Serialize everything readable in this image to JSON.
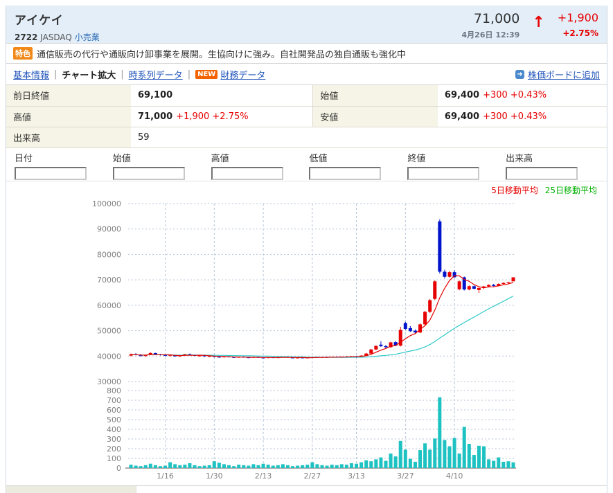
{
  "header": {
    "name": "アイケイ",
    "code": "2722",
    "market": "JASDAQ",
    "industry": "小売業",
    "price": "71,000",
    "datetime": "4月26日 12:39",
    "change": "+1,900",
    "change_pct": "+2.75%",
    "arrow": "↑"
  },
  "feature": {
    "badge": "特色",
    "text": "通信販売の代行や通販向け卸事業を展開。生協向けに強み。自社開発品の独自通販も強化中"
  },
  "tabs": {
    "items": [
      {
        "label": "基本情報"
      },
      {
        "label": "チャート拡大"
      },
      {
        "label": "時系列データ"
      },
      {
        "label": "財務データ",
        "badge": "NEW"
      }
    ],
    "separator": "|",
    "board_link": "株価ボードに追加",
    "board_icon": "➜"
  },
  "summary": {
    "cells": [
      {
        "label": "前日終値",
        "value": "69,100",
        "change": ""
      },
      {
        "label": "始値",
        "value": "69,400",
        "change": "+300 +0.43%"
      },
      {
        "label": "高値",
        "value": "71,000",
        "change": "+1,900 +2.75%"
      },
      {
        "label": "安値",
        "value": "69,400",
        "change": "+300 +0.43%"
      },
      {
        "label": "出来高",
        "value": "59",
        "change": ""
      }
    ]
  },
  "entry": {
    "fields": [
      "日付",
      "始値",
      "高値",
      "低値",
      "終値",
      "出来高"
    ]
  },
  "chart_data": {
    "type": "candlestick",
    "title": "",
    "legend": [
      {
        "label": "5日移動平均",
        "color": "#e60000"
      },
      {
        "label": "25日移動平均",
        "color": "#00b000"
      }
    ],
    "price_axis": {
      "min": 30000,
      "max": 100000,
      "ticks": [
        100000,
        90000,
        80000,
        70000,
        60000,
        50000,
        40000,
        30000
      ]
    },
    "volume_axis": {
      "min": 0,
      "max": 800,
      "ticks": [
        800,
        700,
        600,
        500,
        400,
        300,
        200,
        100,
        0
      ]
    },
    "x_ticks": [
      {
        "label": "1/16",
        "index": 7
      },
      {
        "label": "1/30",
        "index": 17
      },
      {
        "label": "2/13",
        "index": 27
      },
      {
        "label": "2/27",
        "index": 37
      },
      {
        "label": "3/13",
        "index": 46
      },
      {
        "label": "3/27",
        "index": 56
      },
      {
        "label": "4/10",
        "index": 66
      }
    ],
    "up_color": "#e60000",
    "down_color": "#0014cc",
    "ma5_color": "#e60000",
    "ma25_color": "#2ec8c8",
    "volume_color": "#1fc2c2",
    "grid_color": "#b4c2d6",
    "axis_text_color": "#808080",
    "candles": [
      [
        40200,
        41000,
        39900,
        40700
      ],
      [
        40700,
        41200,
        40300,
        40500
      ],
      [
        40500,
        40800,
        39900,
        40000
      ],
      [
        40000,
        40600,
        39800,
        40500
      ],
      [
        40500,
        41500,
        40400,
        41200
      ],
      [
        41200,
        41300,
        40500,
        40700
      ],
      [
        40700,
        40900,
        40200,
        40400
      ],
      [
        40400,
        40600,
        39900,
        40100
      ],
      [
        40100,
        40500,
        39900,
        40300
      ],
      [
        40300,
        40400,
        39700,
        39900
      ],
      [
        39900,
        40300,
        39700,
        40200
      ],
      [
        40200,
        40900,
        40100,
        40800
      ],
      [
        40800,
        41000,
        40300,
        40500
      ],
      [
        40500,
        40600,
        39900,
        40100
      ],
      [
        40100,
        40400,
        39800,
        40200
      ],
      [
        40200,
        40300,
        39700,
        39900
      ],
      [
        39900,
        40200,
        39600,
        40000
      ],
      [
        40000,
        40100,
        39500,
        39700
      ],
      [
        39700,
        40000,
        39400,
        39600
      ],
      [
        39600,
        39900,
        39400,
        39800
      ],
      [
        39800,
        40000,
        39500,
        39600
      ],
      [
        39600,
        39800,
        39300,
        39500
      ],
      [
        39500,
        39800,
        39300,
        39700
      ],
      [
        39700,
        39900,
        39400,
        39500
      ],
      [
        39500,
        39700,
        39200,
        39400
      ],
      [
        39400,
        39700,
        39300,
        39600
      ],
      [
        39600,
        39800,
        39300,
        39400
      ],
      [
        39400,
        39600,
        39100,
        39300
      ],
      [
        39300,
        39600,
        39200,
        39500
      ],
      [
        39500,
        39700,
        39300,
        39400
      ],
      [
        39400,
        39600,
        39200,
        39500
      ],
      [
        39500,
        39800,
        39400,
        39700
      ],
      [
        39700,
        39800,
        39300,
        39400
      ],
      [
        39400,
        39600,
        39200,
        39300
      ],
      [
        39300,
        39500,
        39100,
        39400
      ],
      [
        39400,
        39600,
        39200,
        39300
      ],
      [
        39300,
        39500,
        39100,
        39400
      ],
      [
        39400,
        39700,
        39300,
        39600
      ],
      [
        39600,
        39800,
        39400,
        39500
      ],
      [
        39500,
        39700,
        39300,
        39600
      ],
      [
        39600,
        39800,
        39400,
        39500
      ],
      [
        39500,
        39800,
        39400,
        39700
      ],
      [
        39700,
        39900,
        39500,
        39600
      ],
      [
        39600,
        39900,
        39500,
        39800
      ],
      [
        39800,
        40000,
        39600,
        39700
      ],
      [
        39700,
        40000,
        39600,
        39900
      ],
      [
        39900,
        40100,
        39700,
        39800
      ],
      [
        39800,
        40300,
        39700,
        40200
      ],
      [
        40200,
        41200,
        40100,
        41000
      ],
      [
        41000,
        42800,
        40900,
        42600
      ],
      [
        42600,
        44200,
        42400,
        44000
      ],
      [
        44500,
        45800,
        43600,
        43900
      ],
      [
        43900,
        44400,
        43100,
        43500
      ],
      [
        43500,
        45600,
        43300,
        45400
      ],
      [
        45500,
        46000,
        43900,
        44100
      ],
      [
        44100,
        51500,
        43800,
        50300
      ],
      [
        53000,
        53500,
        50300,
        50700
      ],
      [
        51000,
        51800,
        49500,
        49800
      ],
      [
        50000,
        50500,
        48800,
        49300
      ],
      [
        49300,
        52800,
        49000,
        52500
      ],
      [
        52500,
        57800,
        52200,
        57400
      ],
      [
        57400,
        62500,
        57000,
        62000
      ],
      [
        62500,
        69800,
        62000,
        69400
      ],
      [
        93000,
        93800,
        72500,
        73200
      ],
      [
        73200,
        74000,
        70500,
        71200
      ],
      [
        71200,
        73500,
        70800,
        73000
      ],
      [
        73000,
        73800,
        70800,
        71000
      ],
      [
        66300,
        69700,
        65900,
        69400
      ],
      [
        71000,
        71300,
        65800,
        66200
      ],
      [
        66200,
        67800,
        65900,
        67500
      ],
      [
        67500,
        67800,
        66200,
        66500
      ],
      [
        66000,
        67000,
        64800,
        66800
      ],
      [
        66800,
        67600,
        66300,
        67400
      ],
      [
        67400,
        68200,
        67000,
        68000
      ],
      [
        68000,
        68400,
        67300,
        67600
      ],
      [
        67600,
        68600,
        67400,
        68400
      ],
      [
        68400,
        69000,
        68000,
        68800
      ],
      [
        68800,
        69300,
        68300,
        69100
      ],
      [
        69400,
        71000,
        69400,
        71000
      ]
    ],
    "volumes": [
      35,
      25,
      20,
      30,
      45,
      30,
      20,
      25,
      60,
      40,
      30,
      35,
      50,
      30,
      20,
      25,
      30,
      70,
      55,
      40,
      30,
      20,
      35,
      30,
      25,
      40,
      30,
      45,
      35,
      25,
      30,
      40,
      30,
      20,
      25,
      30,
      35,
      60,
      40,
      30,
      25,
      35,
      30,
      40,
      35,
      50,
      45,
      60,
      80,
      70,
      90,
      110,
      75,
      150,
      120,
      280,
      190,
      95,
      65,
      185,
      255,
      190,
      305,
      730,
      290,
      225,
      310,
      150,
      425,
      250,
      135,
      230,
      225,
      90,
      75,
      110,
      65,
      70,
      59
    ]
  }
}
